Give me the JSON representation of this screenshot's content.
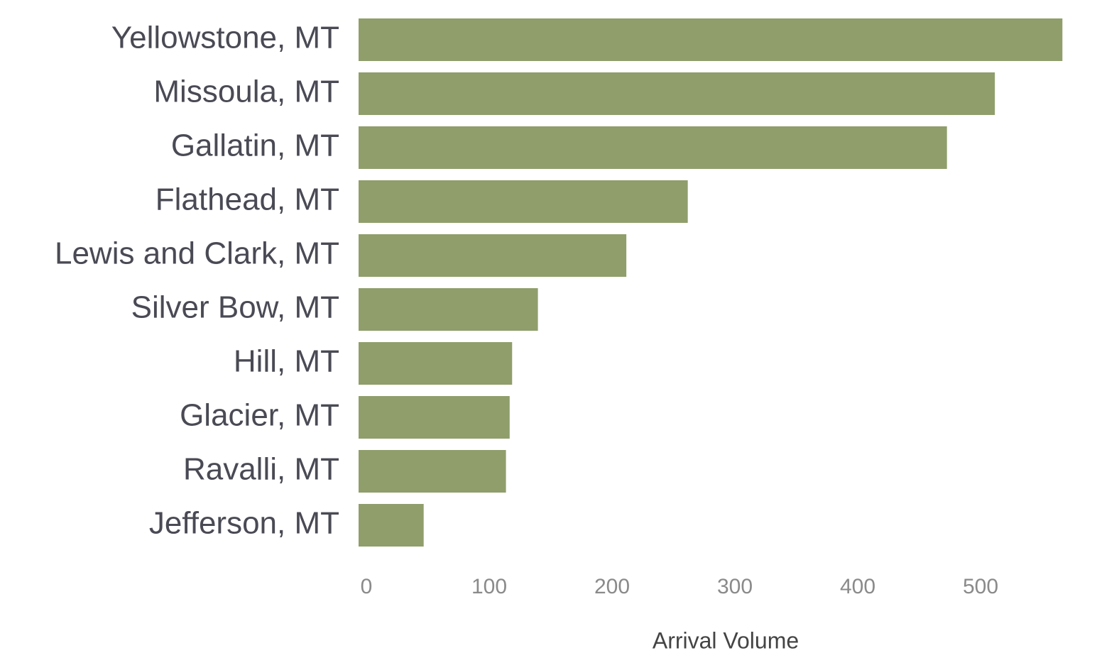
{
  "chart_data": {
    "type": "bar",
    "orientation": "horizontal",
    "x_label": "Arrival Volume",
    "categories": [
      "Yellowstone, MT",
      "Missoula, MT",
      "Gallatin, MT",
      "Flathead, MT",
      "Lewis and Clark, MT",
      "Silver Bow, MT",
      "Hill, MT",
      "Glacier, MT",
      "Ravalli, MT",
      "Jefferson, MT"
    ],
    "values": [
      573,
      518,
      479,
      268,
      218,
      146,
      125,
      123,
      120,
      53
    ],
    "color": "#8f9e6b",
    "xlim": [
      0,
      600
    ],
    "xticks": [
      0,
      100,
      200,
      300,
      400,
      500
    ],
    "grid": false
  }
}
